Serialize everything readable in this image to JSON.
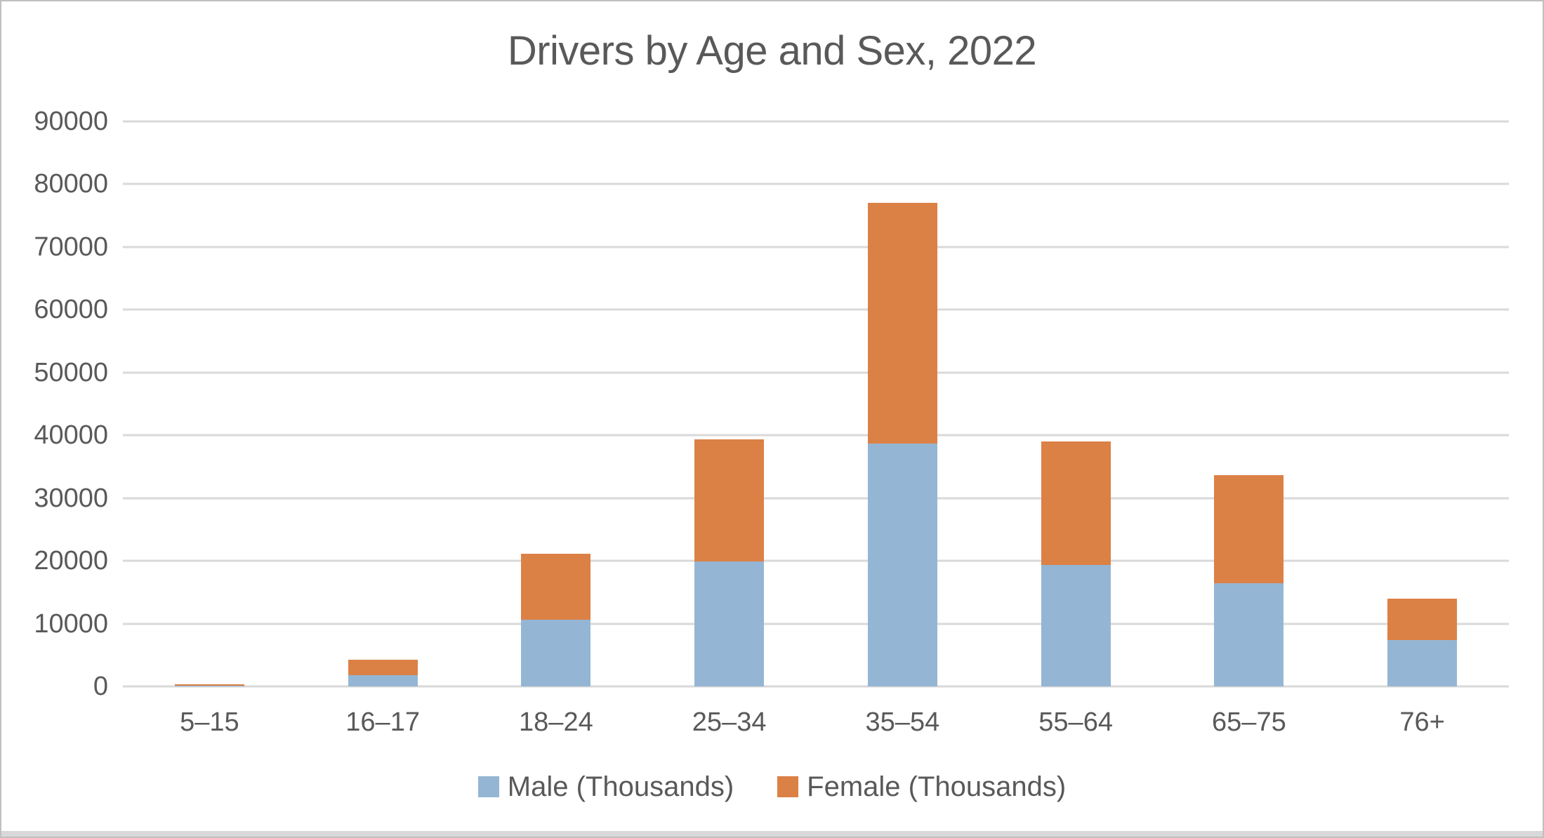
{
  "window": {
    "background": "#FFFFFF",
    "frame_border_color": "#C0C0C0",
    "bottom_edge_color": "#D9D9D9"
  },
  "chart_data": {
    "type": "bar",
    "stacked": true,
    "title": "Drivers by Age and Sex, 2022",
    "categories": [
      "5–15",
      "16–17",
      "18–24",
      "25–34",
      "35–54",
      "55–64",
      "65–75",
      "76+"
    ],
    "series": [
      {
        "name": "Male (Thousands)",
        "color": "#94B6D4",
        "values": [
          150,
          1800,
          10600,
          19900,
          38700,
          19300,
          16400,
          7400
        ]
      },
      {
        "name": "Female (Thousands)",
        "color": "#DC8146",
        "values": [
          240,
          2450,
          10500,
          19500,
          38300,
          19700,
          17300,
          6600
        ]
      }
    ],
    "xlabel": "",
    "ylabel": "",
    "ylim": [
      0,
      90000
    ],
    "yticks": [
      0,
      10000,
      20000,
      30000,
      40000,
      50000,
      60000,
      70000,
      80000,
      90000
    ],
    "grid": true,
    "gridline_color": "#D9D9D9",
    "text_color": "#595959",
    "legend_position": "bottom"
  }
}
